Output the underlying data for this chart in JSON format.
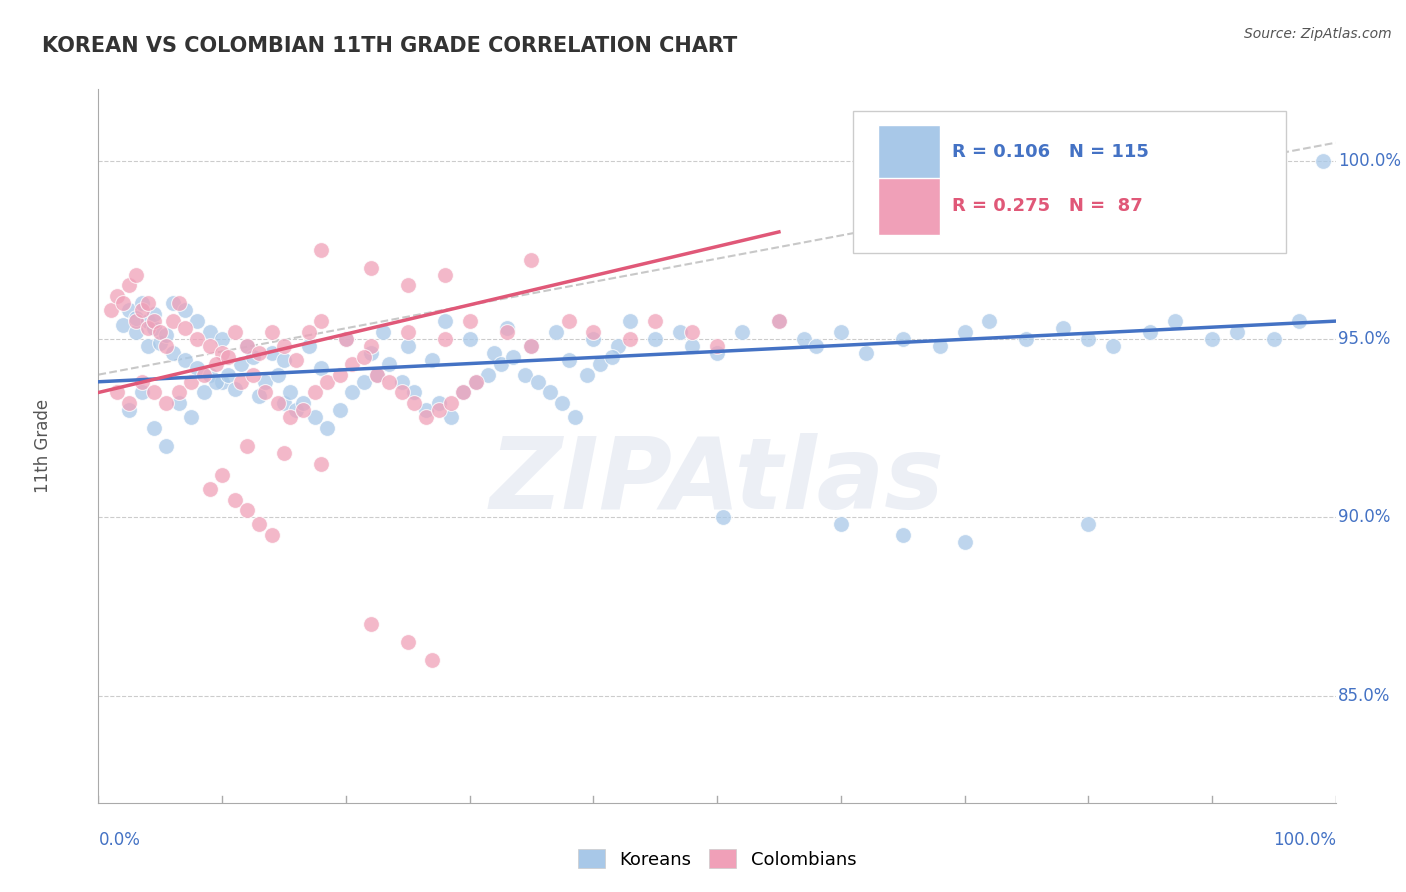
{
  "title": "KOREAN VS COLOMBIAN 11TH GRADE CORRELATION CHART",
  "source_text": "Source: ZipAtlas.com",
  "ylabel": "11th Grade",
  "ylabel_right_ticks": [
    "85.0%",
    "90.0%",
    "95.0%",
    "100.0%"
  ],
  "ylabel_right_values": [
    0.85,
    0.9,
    0.95,
    1.0
  ],
  "legend_label_koreans": "Koreans",
  "legend_label_colombians": "Colombians",
  "blue_color": "#a8c8e8",
  "pink_color": "#f0a0b8",
  "blue_line_color": "#4472c4",
  "pink_line_color": "#e05878",
  "dashed_line_color": "#c8c8c8",
  "watermark_text": "ZIPAtlas",
  "watermark_color": "#d0d8e8",
  "title_color": "#333333",
  "legend_blue_text": "R = 0.106   N = 115",
  "legend_pink_text": "R = 0.275   N =  87",
  "blue_scatter_x": [
    0.02,
    0.025,
    0.03,
    0.03,
    0.035,
    0.04,
    0.04,
    0.045,
    0.045,
    0.05,
    0.055,
    0.06,
    0.06,
    0.07,
    0.07,
    0.08,
    0.08,
    0.09,
    0.09,
    0.1,
    0.1,
    0.11,
    0.12,
    0.13,
    0.14,
    0.15,
    0.15,
    0.16,
    0.17,
    0.18,
    0.2,
    0.22,
    0.23,
    0.25,
    0.27,
    0.28,
    0.3,
    0.32,
    0.33,
    0.35,
    0.37,
    0.38,
    0.4,
    0.42,
    0.43,
    0.45,
    0.47,
    0.48,
    0.5,
    0.52,
    0.55,
    0.57,
    0.58,
    0.6,
    0.62,
    0.65,
    0.68,
    0.7,
    0.72,
    0.75,
    0.78,
    0.8,
    0.82,
    0.85,
    0.87,
    0.9,
    0.92,
    0.95,
    0.97,
    0.99,
    0.025,
    0.035,
    0.045,
    0.055,
    0.065,
    0.075,
    0.085,
    0.095,
    0.105,
    0.115,
    0.125,
    0.135,
    0.145,
    0.155,
    0.165,
    0.175,
    0.185,
    0.195,
    0.205,
    0.215,
    0.225,
    0.235,
    0.245,
    0.255,
    0.265,
    0.275,
    0.285,
    0.295,
    0.305,
    0.315,
    0.325,
    0.335,
    0.345,
    0.355,
    0.365,
    0.375,
    0.385,
    0.395,
    0.405,
    0.415,
    0.505,
    0.6,
    0.65,
    0.7,
    0.8
  ],
  "blue_scatter_y": [
    0.954,
    0.958,
    0.952,
    0.956,
    0.96,
    0.948,
    0.955,
    0.953,
    0.957,
    0.949,
    0.951,
    0.946,
    0.96,
    0.944,
    0.958,
    0.942,
    0.955,
    0.94,
    0.952,
    0.938,
    0.95,
    0.936,
    0.948,
    0.934,
    0.946,
    0.932,
    0.944,
    0.93,
    0.948,
    0.942,
    0.95,
    0.946,
    0.952,
    0.948,
    0.944,
    0.955,
    0.95,
    0.946,
    0.953,
    0.948,
    0.952,
    0.944,
    0.95,
    0.948,
    0.955,
    0.95,
    0.952,
    0.948,
    0.946,
    0.952,
    0.955,
    0.95,
    0.948,
    0.952,
    0.946,
    0.95,
    0.948,
    0.952,
    0.955,
    0.95,
    0.953,
    0.95,
    0.948,
    0.952,
    0.955,
    0.95,
    0.952,
    0.95,
    0.955,
    1.0,
    0.93,
    0.935,
    0.925,
    0.92,
    0.932,
    0.928,
    0.935,
    0.938,
    0.94,
    0.943,
    0.945,
    0.938,
    0.94,
    0.935,
    0.932,
    0.928,
    0.925,
    0.93,
    0.935,
    0.938,
    0.94,
    0.943,
    0.938,
    0.935,
    0.93,
    0.932,
    0.928,
    0.935,
    0.938,
    0.94,
    0.943,
    0.945,
    0.94,
    0.938,
    0.935,
    0.932,
    0.928,
    0.94,
    0.943,
    0.945,
    0.9,
    0.898,
    0.895,
    0.893,
    0.898
  ],
  "pink_scatter_x": [
    0.01,
    0.015,
    0.02,
    0.025,
    0.03,
    0.03,
    0.035,
    0.04,
    0.04,
    0.045,
    0.05,
    0.055,
    0.06,
    0.065,
    0.07,
    0.08,
    0.09,
    0.1,
    0.11,
    0.12,
    0.13,
    0.14,
    0.15,
    0.16,
    0.17,
    0.18,
    0.2,
    0.22,
    0.25,
    0.28,
    0.3,
    0.33,
    0.35,
    0.38,
    0.4,
    0.43,
    0.45,
    0.48,
    0.5,
    0.55,
    0.015,
    0.025,
    0.035,
    0.045,
    0.055,
    0.065,
    0.075,
    0.085,
    0.095,
    0.105,
    0.115,
    0.125,
    0.135,
    0.145,
    0.155,
    0.165,
    0.175,
    0.185,
    0.195,
    0.205,
    0.215,
    0.225,
    0.235,
    0.245,
    0.255,
    0.265,
    0.275,
    0.285,
    0.295,
    0.305,
    0.18,
    0.22,
    0.25,
    0.28,
    0.35,
    0.12,
    0.15,
    0.18,
    0.09,
    0.1,
    0.11,
    0.12,
    0.13,
    0.14,
    0.22,
    0.25,
    0.27
  ],
  "pink_scatter_y": [
    0.958,
    0.962,
    0.96,
    0.965,
    0.968,
    0.955,
    0.958,
    0.953,
    0.96,
    0.955,
    0.952,
    0.948,
    0.955,
    0.96,
    0.953,
    0.95,
    0.948,
    0.946,
    0.952,
    0.948,
    0.946,
    0.952,
    0.948,
    0.944,
    0.952,
    0.955,
    0.95,
    0.948,
    0.952,
    0.95,
    0.955,
    0.952,
    0.948,
    0.955,
    0.952,
    0.95,
    0.955,
    0.952,
    0.948,
    0.955,
    0.935,
    0.932,
    0.938,
    0.935,
    0.932,
    0.935,
    0.938,
    0.94,
    0.943,
    0.945,
    0.938,
    0.94,
    0.935,
    0.932,
    0.928,
    0.93,
    0.935,
    0.938,
    0.94,
    0.943,
    0.945,
    0.94,
    0.938,
    0.935,
    0.932,
    0.928,
    0.93,
    0.932,
    0.935,
    0.938,
    0.975,
    0.97,
    0.965,
    0.968,
    0.972,
    0.92,
    0.918,
    0.915,
    0.908,
    0.912,
    0.905,
    0.902,
    0.898,
    0.895,
    0.87,
    0.865,
    0.86
  ],
  "blue_trend_x": [
    0.0,
    1.0
  ],
  "blue_trend_y": [
    0.938,
    0.955
  ],
  "pink_trend_x": [
    0.0,
    0.55
  ],
  "pink_trend_y": [
    0.935,
    0.98
  ],
  "dashed_trend_x": [
    0.0,
    1.0
  ],
  "dashed_trend_y": [
    0.94,
    1.005
  ],
  "xmin": 0.0,
  "xmax": 1.0,
  "ymin": 0.82,
  "ymax": 1.02
}
